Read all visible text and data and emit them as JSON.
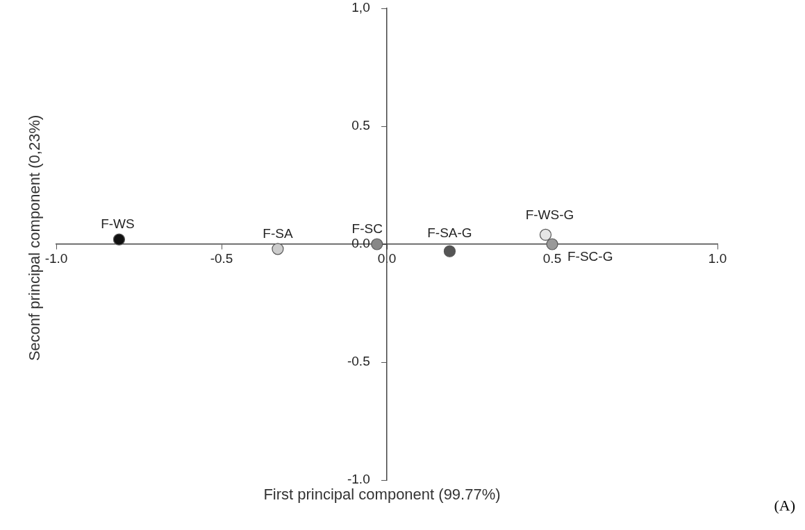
{
  "chart_data": {
    "type": "scatter",
    "xlabel": "First principal component (99.77%)",
    "ylabel": "Seconf principal component (0,23%)",
    "annotations": [
      "(A)"
    ],
    "xlim": [
      -1.0,
      1.0
    ],
    "ylim": [
      -1.0,
      1.0
    ],
    "xticks": [
      {
        "value": -1,
        "label": "-1.0"
      },
      {
        "value": -0.5,
        "label": "-0.5"
      },
      {
        "value": 0,
        "label": "0.0"
      },
      {
        "value": 0.5,
        "label": "0.5"
      },
      {
        "value": 1,
        "label": "1.0"
      }
    ],
    "yticks": [
      {
        "value": -1,
        "label": "-1.0"
      },
      {
        "value": -0.5,
        "label": "-0.5"
      },
      {
        "value": 0,
        "label": "0.0"
      },
      {
        "value": 0.5,
        "label": "0.5"
      },
      {
        "value": 1,
        "label": "1,0"
      }
    ],
    "grid": false,
    "legend": false,
    "marker": "circle",
    "series": [
      {
        "name": "F-WS",
        "color": "#111111",
        "x": [
          -0.81
        ],
        "values": [
          0.02
        ]
      },
      {
        "name": "F-SA",
        "color": "#cccccc",
        "x": [
          -0.33
        ],
        "values": [
          -0.02
        ]
      },
      {
        "name": "F-SC",
        "color": "#888888",
        "x": [
          -0.03
        ],
        "values": [
          0.0
        ]
      },
      {
        "name": "F-SA-G",
        "color": "#555555",
        "x": [
          0.19
        ],
        "values": [
          -0.03
        ]
      },
      {
        "name": "F-WS-G",
        "color": "#e6e6e6",
        "x": [
          0.48
        ],
        "values": [
          0.04
        ]
      },
      {
        "name": "F-SC-G",
        "color": "#999999",
        "x": [
          0.5
        ],
        "values": [
          0.0
        ]
      }
    ]
  }
}
